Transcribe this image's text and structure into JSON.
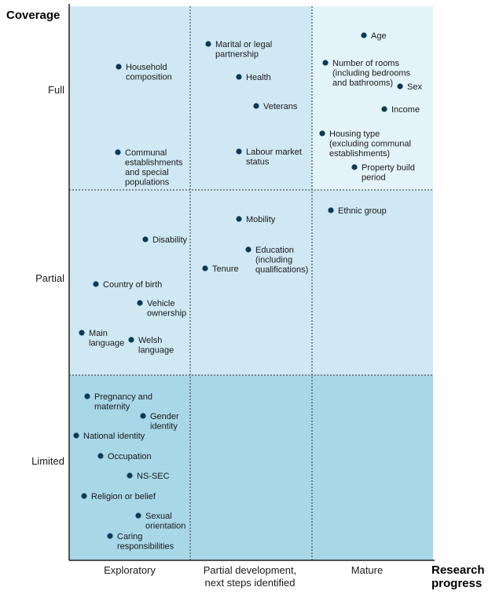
{
  "chart_data": {
    "type": "scatter",
    "ylabel": "Coverage",
    "xlabel": [
      "Research",
      "progress"
    ],
    "x_categories": [
      {
        "key": "exploratory",
        "label": [
          "Exploratory"
        ]
      },
      {
        "key": "partial_development",
        "label": [
          "Partial development,",
          "next steps identified"
        ]
      },
      {
        "key": "mature",
        "label": [
          "Mature"
        ]
      }
    ],
    "y_categories": [
      {
        "key": "full",
        "label": "Full"
      },
      {
        "key": "partial",
        "label": "Partial"
      },
      {
        "key": "limited",
        "label": "Limited"
      }
    ],
    "colors": {
      "point": "#0b3a55",
      "light": "#e3f3fa",
      "mid": "#cfe8f3",
      "dark": "#a8d7e8",
      "divider": "#333333"
    },
    "shading": [
      {
        "x": "exploratory",
        "y": "full",
        "tone": "mid"
      },
      {
        "x": "partial_development",
        "y": "full",
        "tone": "mid"
      },
      {
        "x": "mature",
        "y": "full",
        "tone": "light"
      },
      {
        "x": "exploratory",
        "y": "partial",
        "tone": "mid"
      },
      {
        "x": "partial_development",
        "y": "partial",
        "tone": "mid"
      },
      {
        "x": "mature",
        "y": "partial",
        "tone": "mid"
      },
      {
        "x": "exploratory",
        "y": "limited",
        "tone": "dark"
      },
      {
        "x": "partial_development",
        "y": "limited",
        "tone": "dark"
      },
      {
        "x": "mature",
        "y": "limited",
        "tone": "dark"
      }
    ],
    "points": [
      {
        "name": "Household composition",
        "label": [
          "Household",
          "composition"
        ],
        "x_cat": "exploratory",
        "y_cat": "full"
      },
      {
        "name": "Communal establishments and special populations",
        "label": [
          "Communal",
          "establishments",
          "and special",
          "populations"
        ],
        "x_cat": "exploratory",
        "y_cat": "full"
      },
      {
        "name": "Marital or legal partnership",
        "label": [
          "Marital or legal",
          "partnership"
        ],
        "x_cat": "partial_development",
        "y_cat": "full"
      },
      {
        "name": "Health",
        "label": [
          "Health"
        ],
        "x_cat": "partial_development",
        "y_cat": "full"
      },
      {
        "name": "Veterans",
        "label": [
          "Veterans"
        ],
        "x_cat": "partial_development",
        "y_cat": "full"
      },
      {
        "name": "Labour market status",
        "label": [
          "Labour market",
          "status"
        ],
        "x_cat": "partial_development",
        "y_cat": "full"
      },
      {
        "name": "Age",
        "label": [
          "Age"
        ],
        "x_cat": "mature",
        "y_cat": "full"
      },
      {
        "name": "Number of rooms (including bedrooms and bathrooms)",
        "label": [
          "Number of rooms",
          "(including bedrooms",
          "and bathrooms)"
        ],
        "x_cat": "mature",
        "y_cat": "full"
      },
      {
        "name": "Sex",
        "label": [
          "Sex"
        ],
        "x_cat": "mature",
        "y_cat": "full"
      },
      {
        "name": "Income",
        "label": [
          "Income"
        ],
        "x_cat": "mature",
        "y_cat": "full"
      },
      {
        "name": "Housing type (excluding communal establishments)",
        "label": [
          "Housing type",
          "(excluding communal",
          "establishments)"
        ],
        "x_cat": "mature",
        "y_cat": "full"
      },
      {
        "name": "Property build period",
        "label": [
          "Property build",
          "period"
        ],
        "x_cat": "mature",
        "y_cat": "full"
      },
      {
        "name": "Disability",
        "label": [
          "Disability"
        ],
        "x_cat": "exploratory",
        "y_cat": "partial"
      },
      {
        "name": "Country of birth",
        "label": [
          "Country of birth"
        ],
        "x_cat": "exploratory",
        "y_cat": "partial"
      },
      {
        "name": "Vehicle ownership",
        "label": [
          "Vehicle",
          "ownership"
        ],
        "x_cat": "exploratory",
        "y_cat": "partial"
      },
      {
        "name": "Main language",
        "label": [
          "Main",
          "language"
        ],
        "x_cat": "exploratory",
        "y_cat": "partial"
      },
      {
        "name": "Welsh language",
        "label": [
          "Welsh",
          "language"
        ],
        "x_cat": "exploratory",
        "y_cat": "partial"
      },
      {
        "name": "Mobility",
        "label": [
          "Mobility"
        ],
        "x_cat": "partial_development",
        "y_cat": "partial"
      },
      {
        "name": "Education (including qualifications)",
        "label": [
          "Education",
          "(including",
          "qualifications)"
        ],
        "x_cat": "partial_development",
        "y_cat": "partial"
      },
      {
        "name": "Tenure",
        "label": [
          "Tenure"
        ],
        "x_cat": "partial_development",
        "y_cat": "partial"
      },
      {
        "name": "Ethnic group",
        "label": [
          "Ethnic group"
        ],
        "x_cat": "mature",
        "y_cat": "partial"
      },
      {
        "name": "Pregnancy and maternity",
        "label": [
          "Pregnancy and",
          "maternity"
        ],
        "x_cat": "exploratory",
        "y_cat": "limited"
      },
      {
        "name": "Gender identity",
        "label": [
          "Gender",
          "identity"
        ],
        "x_cat": "exploratory",
        "y_cat": "limited"
      },
      {
        "name": "National identity",
        "label": [
          "National identity"
        ],
        "x_cat": "exploratory",
        "y_cat": "limited"
      },
      {
        "name": "Occupation",
        "label": [
          "Occupation"
        ],
        "x_cat": "exploratory",
        "y_cat": "limited"
      },
      {
        "name": "NS-SEC",
        "label": [
          "NS-SEC"
        ],
        "x_cat": "exploratory",
        "y_cat": "limited"
      },
      {
        "name": "Religion or belief",
        "label": [
          "Religion or belief"
        ],
        "x_cat": "exploratory",
        "y_cat": "limited"
      },
      {
        "name": "Sexual orientation",
        "label": [
          "Sexual",
          "orientation"
        ],
        "x_cat": "exploratory",
        "y_cat": "limited"
      },
      {
        "name": "Caring responsibilities",
        "label": [
          "Caring",
          "responsibilities"
        ],
        "x_cat": "exploratory",
        "y_cat": "limited"
      }
    ]
  }
}
